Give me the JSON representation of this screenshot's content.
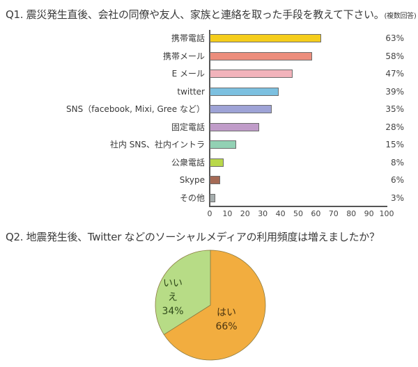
{
  "q1": {
    "title": "Q1. 震災発生直後、会社の同僚や友人、家族と連絡を取った手段を教えて下さい。",
    "note": "(複数回答)"
  },
  "q2": {
    "title": "Q2. 地震発生後、Twitter などのソーシャルメディアの利用頻度は増えましたか？"
  },
  "chart_data": [
    {
      "type": "bar",
      "orientation": "horizontal",
      "title": "Q1. 震災発生直後、会社の同僚や友人、家族と連絡を取った手段を教えて下さい。(複数回答)",
      "categories": [
        "携帯電話",
        "携帯メール",
        "E メール",
        "twitter",
        "SNS（facebook, Mixi, Gree など）",
        "固定電話",
        "社内 SNS、社内イントラ",
        "公衆電話",
        "Skype",
        "その他"
      ],
      "values": [
        63,
        58,
        47,
        39,
        35,
        28,
        15,
        8,
        6,
        3
      ],
      "value_labels": [
        "63%",
        "58%",
        "47%",
        "39%",
        "35%",
        "28%",
        "15%",
        "8%",
        "6%",
        "3%"
      ],
      "colors": [
        "#f5cd1c",
        "#ec8d7c",
        "#f2b3bb",
        "#7cc0e0",
        "#9ea3d6",
        "#c09cc9",
        "#92d1b4",
        "#b9d84a",
        "#a56a55",
        "#a6aeae"
      ],
      "xlim": [
        0,
        100
      ],
      "xticks": [
        0,
        10,
        20,
        30,
        40,
        50,
        60,
        70,
        80,
        90,
        100
      ],
      "xlabel": "",
      "ylabel": "",
      "grid": false,
      "legend": "none"
    },
    {
      "type": "pie",
      "title": "Q2. 地震発生後、Twitter などのソーシャルメディアの利用頻度は増えましたか？",
      "categories": [
        "はい",
        "いいえ"
      ],
      "values": [
        66,
        34
      ],
      "value_labels": [
        "66%",
        "34%"
      ],
      "colors": [
        "#f2ad3f",
        "#b7dc86"
      ],
      "legend": "none"
    }
  ]
}
